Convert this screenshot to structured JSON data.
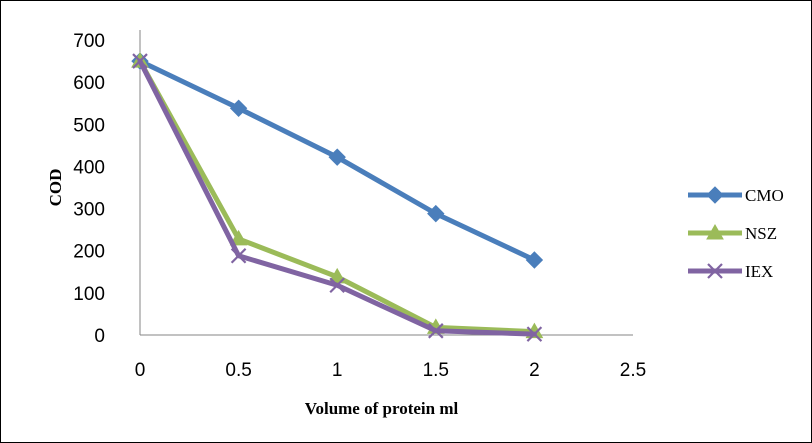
{
  "chart_data": {
    "type": "line",
    "title": "",
    "xlabel": "Volume of protein ml",
    "ylabel": "COD",
    "xlim": [
      0,
      2.5
    ],
    "ylim": [
      0,
      700
    ],
    "x_ticks": [
      "0",
      "0.5",
      "1",
      "1.5",
      "2",
      "2.5"
    ],
    "y_ticks": [
      "0",
      "100",
      "200",
      "300",
      "400",
      "500",
      "600",
      "700"
    ],
    "grid": false,
    "legend_position": "right",
    "x": [
      0,
      0.5,
      1,
      1.5,
      2
    ],
    "series": [
      {
        "name": "CMO",
        "values": [
          650,
          538,
          422,
          288,
          178
        ],
        "color": "#4A7EBB",
        "marker": "diamond"
      },
      {
        "name": "NSZ",
        "values": [
          650,
          228,
          138,
          18,
          8
        ],
        "color": "#9BBB59",
        "marker": "triangle"
      },
      {
        "name": "IEX",
        "values": [
          650,
          188,
          118,
          10,
          2
        ],
        "color": "#8064A2",
        "marker": "x"
      }
    ]
  }
}
